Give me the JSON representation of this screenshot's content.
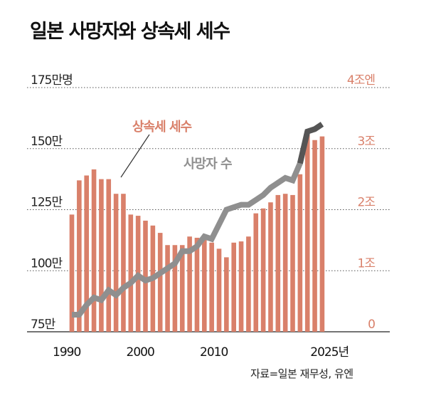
{
  "title": "일본 사망자와 상속세 세수",
  "source": "자료=일본 재무성, 유엔",
  "colors": {
    "bar": "#d9806a",
    "line": "#8f8f8f",
    "line_end": "#555555",
    "left_axis_text": "#222222",
    "right_axis_text": "#d9806a",
    "grid": "#555555"
  },
  "chart_data": {
    "type": "bar+line",
    "title": "일본 사망자와 상속세 세수",
    "x_tick_labels": [
      {
        "year": 1990,
        "label": "1990"
      },
      {
        "year": 2000,
        "label": "2000"
      },
      {
        "year": 2010,
        "label": "2010"
      },
      {
        "year": 2025,
        "label": "2025년"
      }
    ],
    "left_axis": {
      "unit": "만명",
      "range": [
        75,
        175
      ],
      "ticks": [
        {
          "value": 175,
          "label": "175만명"
        },
        {
          "value": 150,
          "label": "150만"
        },
        {
          "value": 125,
          "label": "125만"
        },
        {
          "value": 100,
          "label": "100만"
        },
        {
          "value": 75,
          "label": "75만"
        }
      ]
    },
    "right_axis": {
      "unit": "조엔",
      "range": [
        0,
        4
      ],
      "ticks": [
        {
          "value": 4,
          "label": "4조엔"
        },
        {
          "value": 3,
          "label": "3조"
        },
        {
          "value": 2,
          "label": "2조"
        },
        {
          "value": 1,
          "label": "1조"
        },
        {
          "value": 0,
          "label": "0"
        }
      ]
    },
    "grid": true,
    "series": [
      {
        "name": "상속세 세수",
        "type": "bar",
        "axis": "right",
        "x": [
          1990,
          1991,
          1992,
          1993,
          1994,
          1995,
          1996,
          1997,
          1998,
          1999,
          2000,
          2001,
          2002,
          2003,
          2004,
          2005,
          2006,
          2007,
          2008,
          2009,
          2010,
          2011,
          2012,
          2013,
          2014,
          2015,
          2016,
          2017,
          2018,
          2019,
          2020,
          2021,
          2022,
          2023,
          2024
        ],
        "values": [
          1.92,
          2.48,
          2.56,
          2.66,
          2.5,
          2.5,
          2.26,
          2.26,
          1.92,
          1.9,
          1.82,
          1.74,
          1.62,
          1.42,
          1.42,
          1.42,
          1.56,
          1.54,
          1.52,
          1.46,
          1.36,
          1.22,
          1.46,
          1.48,
          1.56,
          1.94,
          2.02,
          2.12,
          2.24,
          2.26,
          2.24,
          2.58,
          3.28,
          3.14,
          3.2
        ]
      },
      {
        "name": "사망자 수",
        "type": "line",
        "axis": "left",
        "x": [
          1990,
          1991,
          1992,
          1993,
          1994,
          1995,
          1996,
          1997,
          1998,
          1999,
          2000,
          2001,
          2002,
          2003,
          2004,
          2005,
          2006,
          2007,
          2008,
          2009,
          2010,
          2011,
          2012,
          2013,
          2014,
          2015,
          2016,
          2017,
          2018,
          2019,
          2020,
          2021,
          2022,
          2023,
          2024
        ],
        "values": [
          82,
          82,
          86,
          89,
          88,
          92,
          90,
          93,
          95,
          98,
          96,
          97,
          99,
          101,
          103,
          108,
          108,
          110,
          114,
          113,
          119,
          125,
          126,
          127,
          127,
          129,
          131,
          134,
          136,
          138,
          137,
          144,
          157,
          158,
          160
        ]
      }
    ],
    "annotations": [
      {
        "text": "상속세 세수",
        "series": "상속세 세수"
      },
      {
        "text": "사망자 수",
        "series": "사망자 수"
      }
    ]
  }
}
